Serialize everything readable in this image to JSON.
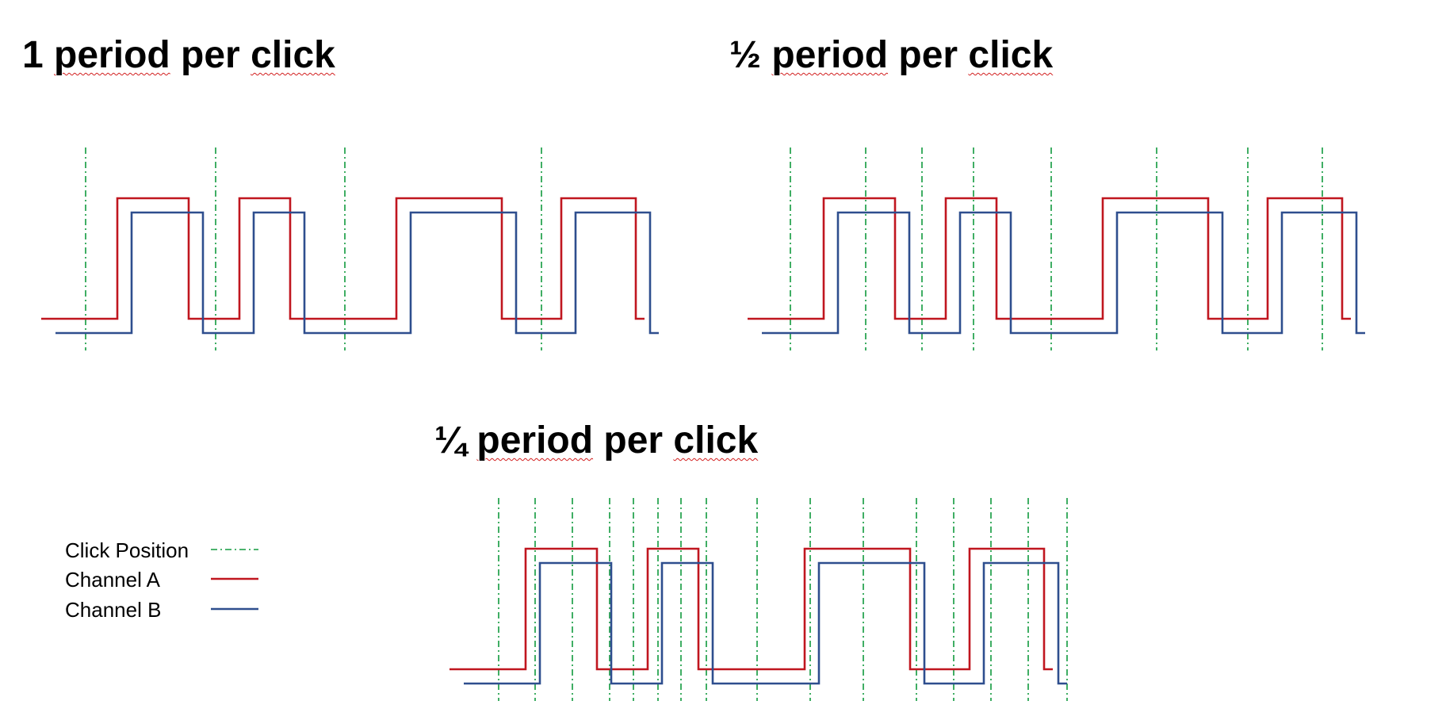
{
  "titles": [
    {
      "prefix": "1 ",
      "w1": "period",
      "mid": " per ",
      "w2": "click"
    },
    {
      "prefix": "½ ",
      "w1": "period",
      "mid": " per ",
      "w2": "click"
    },
    {
      "prefix": "¼ ",
      "w1": "period",
      "mid": " per ",
      "w2": "click"
    }
  ],
  "legend": [
    {
      "label": "Click Position",
      "style": "dash-dot",
      "color": "#119a3e"
    },
    {
      "label": "Channel A",
      "style": "solid",
      "color": "#c0161f"
    },
    {
      "label": "Channel B",
      "style": "solid",
      "color": "#2e4e8e"
    }
  ],
  "colors": {
    "channel_a": "#c0161f",
    "channel_b": "#2e4e8e",
    "click": "#119a3e",
    "spellcheck": "#d21f1f"
  }
}
